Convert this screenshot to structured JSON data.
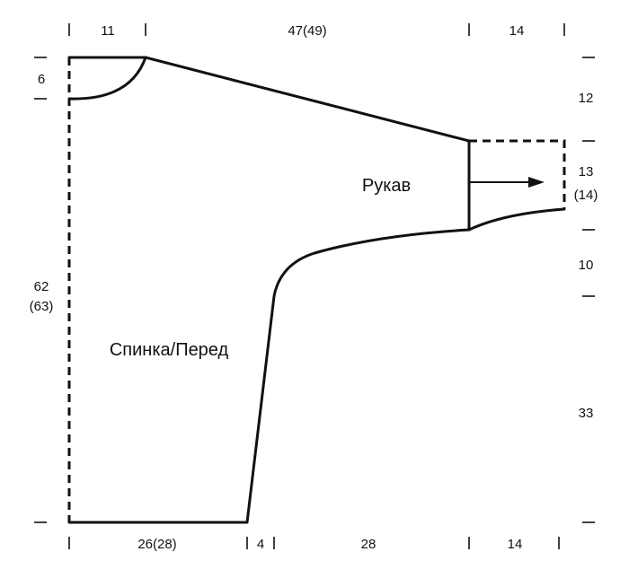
{
  "labels": {
    "sleeve": "Рукав",
    "body": "Спинка/Перед"
  },
  "dimensions": {
    "top": {
      "neck_half": "11",
      "shoulder_sleeve": "47(49)",
      "cuff": "14"
    },
    "bottom": {
      "hem_half": "26(28)",
      "side_shift": "4",
      "underarm": "28",
      "cuff": "14"
    },
    "left": {
      "neck_depth": "6",
      "length_line1": "62",
      "length_line2": "(63)"
    },
    "right": {
      "shoulder_drop": "12",
      "cuff_height_line1": "13",
      "cuff_height_line2": "(14)",
      "underarm_drop": "10",
      "side_height": "33"
    }
  },
  "colors": {
    "line": "#111111",
    "background": "#ffffff"
  }
}
